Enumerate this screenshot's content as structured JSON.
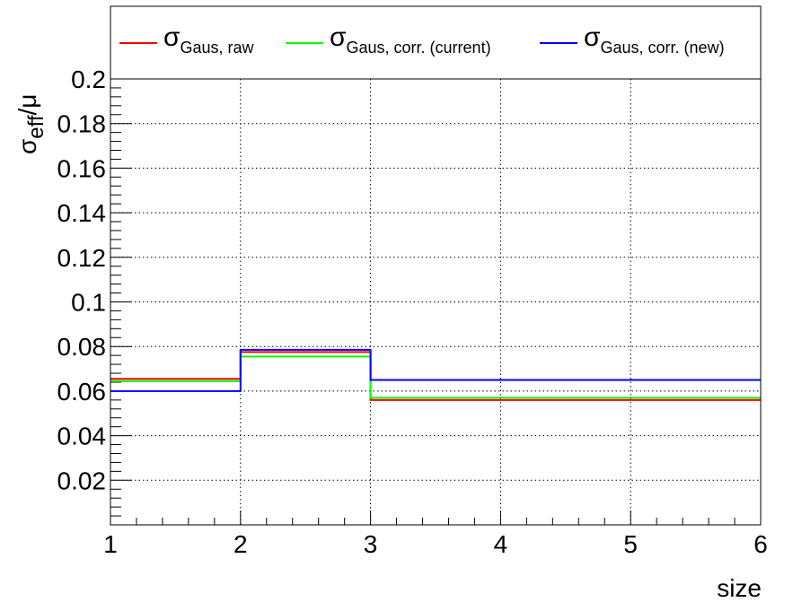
{
  "chart_data": {
    "type": "line",
    "style": "step-histogram",
    "xlabel": "size",
    "ylabel": {
      "main": "σ",
      "sub": "eff",
      "tail": "/μ"
    },
    "xlim": [
      1,
      6
    ],
    "ylim": [
      0,
      0.2
    ],
    "x_ticks": [
      "1",
      "2",
      "3",
      "4",
      "5",
      "6"
    ],
    "y_ticks": [
      "0.02",
      "0.04",
      "0.06",
      "0.08",
      "0.1",
      "0.12",
      "0.14",
      "0.16",
      "0.18",
      "0.2"
    ],
    "grid": true,
    "legend_position": "top",
    "bin_edges": [
      1,
      2,
      3,
      6
    ],
    "series": [
      {
        "name": "σ",
        "name_sub": "Gaus, raw",
        "color": "#ff0000",
        "values": [
          0.0655,
          0.0775,
          0.056
        ]
      },
      {
        "name": "σ",
        "name_sub": "Gaus, corr. (current)",
        "color": "#00ff00",
        "values": [
          0.0645,
          0.0755,
          0.057
        ]
      },
      {
        "name": "σ",
        "name_sub": "Gaus, corr. (new)",
        "color": "#0000ff",
        "values": [
          0.06,
          0.0785,
          0.065
        ]
      }
    ]
  }
}
